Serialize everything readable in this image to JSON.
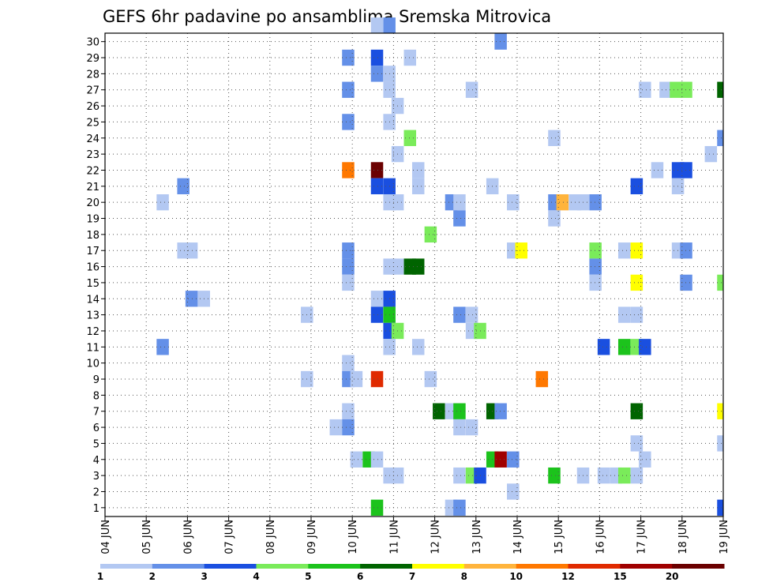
{
  "chart_data": {
    "type": "heatmap",
    "title": "GEFS 6hr padavine po ansamblima Sremska Mitrovica",
    "x_labels": [
      "04 JUN",
      "05 JUN",
      "06 JUN",
      "07 JUN",
      "08 JUN",
      "09 JUN",
      "10 JUN",
      "11 JUN",
      "12 JUN",
      "13 JUN",
      "14 JUN",
      "15 JUN",
      "16 JUN",
      "17 JUN",
      "18 JUN",
      "19 JUN"
    ],
    "y_labels": [
      "1",
      "2",
      "3",
      "4",
      "5",
      "6",
      "7",
      "8",
      "9",
      "10",
      "11",
      "12",
      "13",
      "14",
      "15",
      "16",
      "17",
      "18",
      "19",
      "20",
      "21",
      "22",
      "23",
      "24",
      "25",
      "26",
      "27",
      "28",
      "29",
      "30"
    ],
    "legend": {
      "labels": [
        "1",
        "2",
        "3",
        "4",
        "5",
        "6",
        "7",
        "8",
        "10",
        "12",
        "15",
        "20"
      ],
      "colors": [
        "#b3c8f2",
        "#6490e8",
        "#1a4fe0",
        "#7aeb5a",
        "#1cc31c",
        "#006400",
        "#ffff00",
        "#ffb43c",
        "#ff7800",
        "#e02a00",
        "#a00000",
        "#6b0000"
      ]
    },
    "grid": true,
    "cells": [
      [
        10.6,
        31,
        0
      ],
      [
        10.9,
        31,
        1
      ],
      [
        13.6,
        30,
        1
      ],
      [
        9.9,
        29,
        1
      ],
      [
        10.6,
        29,
        2
      ],
      [
        11.4,
        29,
        0
      ],
      [
        10.6,
        28,
        1
      ],
      [
        10.9,
        28,
        0
      ],
      [
        9.9,
        27,
        1
      ],
      [
        10.9,
        27,
        0
      ],
      [
        12.9,
        27,
        0
      ],
      [
        17.1,
        27,
        0
      ],
      [
        17.6,
        27,
        0
      ],
      [
        17.85,
        27,
        3
      ],
      [
        18.1,
        27,
        3
      ],
      [
        19.0,
        27,
        5
      ],
      [
        11.1,
        26,
        0
      ],
      [
        9.9,
        25,
        1
      ],
      [
        10.9,
        25,
        0
      ],
      [
        11.4,
        24,
        3
      ],
      [
        14.9,
        24,
        0
      ],
      [
        19.0,
        24,
        1
      ],
      [
        11.1,
        23,
        0
      ],
      [
        18.7,
        23,
        0
      ],
      [
        9.9,
        22,
        8
      ],
      [
        10.6,
        22,
        11
      ],
      [
        11.6,
        22,
        0
      ],
      [
        17.4,
        22,
        0
      ],
      [
        17.9,
        22,
        2
      ],
      [
        18.1,
        22,
        2
      ],
      [
        5.9,
        21,
        1
      ],
      [
        10.6,
        21,
        2
      ],
      [
        10.9,
        21,
        2
      ],
      [
        11.6,
        21,
        0
      ],
      [
        13.4,
        21,
        0
      ],
      [
        16.9,
        21,
        2
      ],
      [
        17.9,
        21,
        0
      ],
      [
        5.4,
        20,
        0
      ],
      [
        10.9,
        20,
        0
      ],
      [
        11.1,
        20,
        0
      ],
      [
        12.4,
        20,
        1
      ],
      [
        12.6,
        20,
        0
      ],
      [
        13.9,
        20,
        0
      ],
      [
        14.9,
        20,
        1
      ],
      [
        15.1,
        20,
        7
      ],
      [
        15.4,
        20,
        0
      ],
      [
        15.6,
        20,
        0
      ],
      [
        15.9,
        20,
        1
      ],
      [
        12.6,
        19,
        1
      ],
      [
        14.9,
        19,
        0
      ],
      [
        11.9,
        18,
        3
      ],
      [
        5.9,
        17,
        0
      ],
      [
        6.1,
        17,
        0
      ],
      [
        9.9,
        17,
        1
      ],
      [
        13.9,
        17,
        0
      ],
      [
        14.1,
        17,
        6
      ],
      [
        15.9,
        17,
        3
      ],
      [
        16.6,
        17,
        0
      ],
      [
        16.9,
        17,
        6
      ],
      [
        17.9,
        17,
        0
      ],
      [
        18.1,
        17,
        1
      ],
      [
        9.9,
        16,
        1
      ],
      [
        10.9,
        16,
        0
      ],
      [
        11.1,
        16,
        0
      ],
      [
        11.4,
        16,
        5
      ],
      [
        11.6,
        16,
        5
      ],
      [
        15.9,
        16,
        1
      ],
      [
        9.9,
        15,
        0
      ],
      [
        15.9,
        15,
        0
      ],
      [
        16.9,
        15,
        6
      ],
      [
        18.1,
        15,
        1
      ],
      [
        19.0,
        15,
        3
      ],
      [
        6.1,
        14,
        1
      ],
      [
        6.4,
        14,
        0
      ],
      [
        10.6,
        14,
        0
      ],
      [
        10.9,
        14,
        2
      ],
      [
        8.9,
        13,
        0
      ],
      [
        10.6,
        13,
        2
      ],
      [
        10.9,
        13,
        4
      ],
      [
        12.6,
        13,
        1
      ],
      [
        12.9,
        13,
        0
      ],
      [
        16.6,
        13,
        0
      ],
      [
        16.9,
        13,
        0
      ],
      [
        10.9,
        12,
        2
      ],
      [
        11.1,
        12,
        3
      ],
      [
        12.9,
        12,
        0
      ],
      [
        13.1,
        12,
        3
      ],
      [
        5.4,
        11,
        1
      ],
      [
        10.9,
        11,
        0
      ],
      [
        11.6,
        11,
        0
      ],
      [
        16.1,
        11,
        2
      ],
      [
        16.6,
        11,
        4
      ],
      [
        16.9,
        11,
        3
      ],
      [
        17.1,
        11,
        2
      ],
      [
        9.9,
        10,
        0
      ],
      [
        8.9,
        9,
        0
      ],
      [
        9.9,
        9,
        1
      ],
      [
        10.1,
        9,
        0
      ],
      [
        10.6,
        9,
        9
      ],
      [
        11.9,
        9,
        0
      ],
      [
        14.6,
        9,
        8
      ],
      [
        9.9,
        7,
        0
      ],
      [
        12.1,
        7,
        5
      ],
      [
        12.4,
        7,
        0
      ],
      [
        12.6,
        7,
        4
      ],
      [
        13.4,
        7,
        5
      ],
      [
        13.6,
        7,
        1
      ],
      [
        16.9,
        7,
        5
      ],
      [
        19.0,
        7,
        6
      ],
      [
        9.6,
        6,
        0
      ],
      [
        9.9,
        6,
        1
      ],
      [
        12.6,
        6,
        0
      ],
      [
        12.9,
        6,
        0
      ],
      [
        16.9,
        5,
        0
      ],
      [
        19.0,
        5,
        0
      ],
      [
        10.1,
        4,
        0
      ],
      [
        10.4,
        4,
        4
      ],
      [
        10.6,
        4,
        0
      ],
      [
        13.4,
        4,
        4
      ],
      [
        13.6,
        4,
        10
      ],
      [
        13.9,
        4,
        1
      ],
      [
        17.1,
        4,
        0
      ],
      [
        10.9,
        3,
        0
      ],
      [
        11.1,
        3,
        0
      ],
      [
        12.6,
        3,
        0
      ],
      [
        12.9,
        3,
        3
      ],
      [
        13.1,
        3,
        2
      ],
      [
        14.9,
        3,
        4
      ],
      [
        15.6,
        3,
        0
      ],
      [
        16.1,
        3,
        0
      ],
      [
        16.4,
        3,
        0
      ],
      [
        16.6,
        3,
        3
      ],
      [
        16.9,
        3,
        0
      ],
      [
        13.9,
        2,
        0
      ],
      [
        10.6,
        1,
        4
      ],
      [
        12.4,
        1,
        0
      ],
      [
        12.6,
        1,
        1
      ],
      [
        19.0,
        1,
        2
      ]
    ]
  }
}
